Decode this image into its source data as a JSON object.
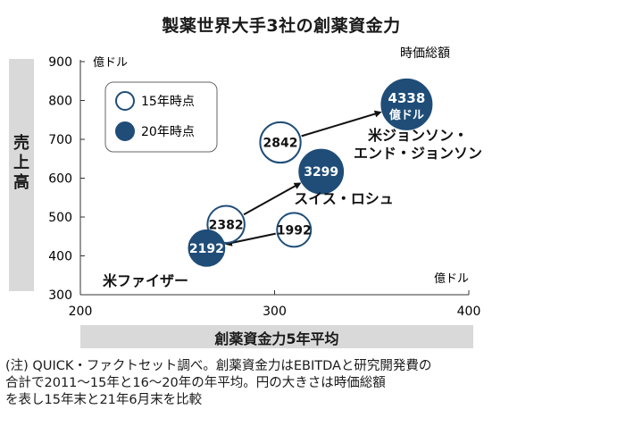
{
  "chart_data": {
    "type": "scatter",
    "title": "製薬世界大手3社の創薬資金力",
    "xlabel": "創薬資金力5年平均",
    "ylabel": "売上高",
    "xunit": "億ドル",
    "yunit": "億ドル",
    "size_label": "時価総額",
    "xlim": [
      200,
      400
    ],
    "ylim": [
      300,
      900
    ],
    "xticks": [
      200,
      300,
      400
    ],
    "yticks": [
      300,
      400,
      500,
      600,
      700,
      800,
      900
    ],
    "legend": {
      "position": "top-left",
      "items": [
        {
          "label": "15年時点",
          "style": "open",
          "color": "#1f4d78"
        },
        {
          "label": "20年時点",
          "style": "filled",
          "color": "#1f4d78"
        }
      ]
    },
    "series": [
      {
        "name": "米ジョンソン・エンド・ジョンソン",
        "points": [
          {
            "period": "15年時点",
            "x": 303,
            "y": 692,
            "value": "2842"
          },
          {
            "period": "20年時点",
            "x": 368,
            "y": 790,
            "value": "4338",
            "unit": "億ドル"
          }
        ]
      },
      {
        "name": "スイス・ロシュ",
        "points": [
          {
            "period": "15年時点",
            "x": 275,
            "y": 481,
            "value": "2382"
          },
          {
            "period": "20年時点",
            "x": 324,
            "y": 617,
            "value": "3299"
          }
        ]
      },
      {
        "name": "米ファイザー",
        "points": [
          {
            "period": "15年時点",
            "x": 310,
            "y": 467,
            "value": "1992"
          },
          {
            "period": "20年時点",
            "x": 265,
            "y": 420,
            "value": "2192"
          }
        ]
      }
    ],
    "colors": {
      "filled": "#1f4d78",
      "outline": "#1f4d78",
      "text_on_filled": "#ffffff",
      "axis": "#333333",
      "label_bg": "#d9d9d9"
    }
  },
  "footnote": [
    "(注) QUICK・ファクトセット調べ。創薬資金力はEBITDAと研究開発費の",
    "合計で2011～15年と16～20年の年平均。円の大きさは時価総額",
    "を表し15年末と21年6月末を比較"
  ]
}
